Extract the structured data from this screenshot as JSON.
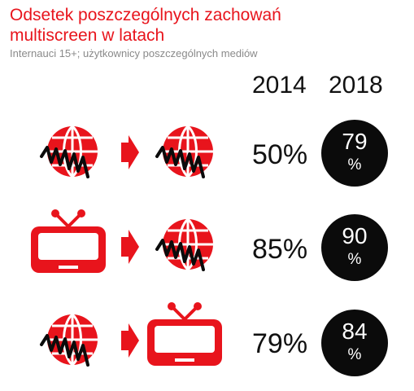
{
  "header": {
    "title": "Odsetek poszczególnych zachowań multiscreen w latach",
    "subtitle": "Internauci 15+; użytkownicy poszczególnych mediów"
  },
  "columns": {
    "year_1": "2014",
    "year_2": "2018"
  },
  "rows": [
    {
      "from_icon": "internet-globe-icon",
      "to_icon": "internet-globe-icon",
      "value_2014": "50%",
      "value_2018": "79",
      "unit_2018": "%"
    },
    {
      "from_icon": "tv-icon",
      "to_icon": "internet-globe-icon",
      "value_2014": "85%",
      "value_2018": "90",
      "unit_2018": "%"
    },
    {
      "from_icon": "internet-globe-icon",
      "to_icon": "tv-icon",
      "value_2014": "79%",
      "value_2018": "84",
      "unit_2018": "%"
    }
  ],
  "colors": {
    "accent": "#e8141c",
    "text": "#111111",
    "subtitle": "#8a8a8a",
    "circle": "#0b0b0b"
  }
}
